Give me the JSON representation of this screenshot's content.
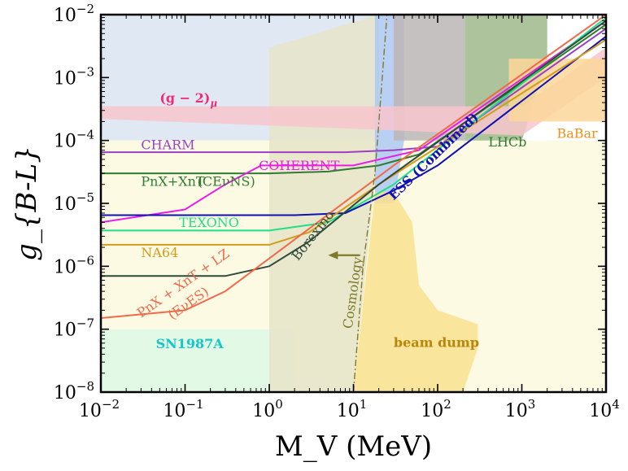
{
  "chart_data": {
    "type": "line",
    "title": "",
    "xlabel": "M_V (MeV)",
    "ylabel": "g_{B-L}",
    "xscale": "log",
    "yscale": "log",
    "xlim": [
      0.01,
      10000
    ],
    "ylim": [
      1e-08,
      0.01
    ],
    "x_ticks": [
      {
        "value": 0.01,
        "base": "10",
        "exp": "−2"
      },
      {
        "value": 0.1,
        "base": "10",
        "exp": "−1"
      },
      {
        "value": 1,
        "base": "10",
        "exp": "0"
      },
      {
        "value": 10,
        "base": "10",
        "exp": "1"
      },
      {
        "value": 100,
        "base": "10",
        "exp": "2"
      },
      {
        "value": 1000,
        "base": "10",
        "exp": "3"
      },
      {
        "value": 10000,
        "base": "10",
        "exp": "4"
      }
    ],
    "y_ticks": [
      {
        "value": 1e-08,
        "base": "10",
        "exp": "−8"
      },
      {
        "value": 1e-07,
        "base": "10",
        "exp": "−7"
      },
      {
        "value": 1e-06,
        "base": "10",
        "exp": "−6"
      },
      {
        "value": 1e-05,
        "base": "10",
        "exp": "−5"
      },
      {
        "value": 0.0001,
        "base": "10",
        "exp": "−4"
      },
      {
        "value": 0.001,
        "base": "10",
        "exp": "−3"
      },
      {
        "value": 0.01,
        "base": "10",
        "exp": "−2"
      }
    ],
    "regions": [
      {
        "name": "blue-background",
        "color": "#dbe5f1",
        "points": [
          [
            0.01,
            0.0001
          ],
          [
            20,
            0.0001
          ],
          [
            20,
            0.01
          ],
          [
            0.01,
            0.01
          ]
        ]
      },
      {
        "name": "yellow-background",
        "color": "#fdf9df",
        "points": [
          [
            0.01,
            1e-08
          ],
          [
            10000,
            1e-08
          ],
          [
            10000,
            0.0001
          ],
          [
            0.01,
            0.0001
          ]
        ]
      },
      {
        "name": "sn1987a",
        "label": "SN1987A",
        "color": "#ddf8e6",
        "points": [
          [
            0.01,
            1e-08
          ],
          [
            2,
            1e-08
          ],
          [
            2,
            1e-07
          ],
          [
            0.01,
            1e-07
          ]
        ]
      },
      {
        "name": "cosmology-region",
        "color": "#e6e4c8",
        "points": [
          [
            1,
            1e-08
          ],
          [
            10,
            1e-08
          ],
          [
            20,
            0.0001
          ],
          [
            20,
            0.01
          ],
          [
            1,
            0.003
          ]
        ]
      },
      {
        "name": "accel-blue",
        "color": "#adc8f2",
        "points": [
          [
            18,
            1e-05
          ],
          [
            30,
            1e-05
          ],
          [
            40,
            0.0001
          ],
          [
            40,
            0.01
          ],
          [
            18,
            0.01
          ]
        ]
      },
      {
        "name": "collider-grey",
        "color": "#bcb6b6",
        "points": [
          [
            30,
            0.0001
          ],
          [
            210,
            0.0001
          ],
          [
            210,
            0.01
          ],
          [
            30,
            0.01
          ]
        ]
      },
      {
        "name": "lhcb-green",
        "color": "#9fb98b",
        "points": [
          [
            210,
            0.0001
          ],
          [
            1000,
            0.0001
          ],
          [
            2000,
            0.002
          ],
          [
            2000,
            0.01
          ],
          [
            210,
            0.01
          ]
        ]
      },
      {
        "name": "beam-dump",
        "label": "beam dump",
        "color": "#f8e08e",
        "points": [
          [
            10,
            1e-08
          ],
          [
            200,
            1e-08
          ],
          [
            300,
            5e-08
          ],
          [
            300,
            1.2e-07
          ],
          [
            100,
            2e-07
          ],
          [
            60,
            5e-07
          ],
          [
            50,
            5e-06
          ],
          [
            30,
            1.5e-05
          ],
          [
            18,
            1.5e-05
          ],
          [
            10,
            1e-08
          ]
        ]
      },
      {
        "name": "g-2-band",
        "label": "(g − 2)_μ",
        "color": "#f7c6cc",
        "points": [
          [
            0.01,
            0.00035
          ],
          [
            1000,
            0.00035
          ],
          [
            10000,
            0.003
          ],
          [
            10000,
            0.001
          ],
          [
            1000,
            0.00012
          ],
          [
            0.01,
            0.00022
          ]
        ]
      },
      {
        "name": "babar-fill",
        "label": "BaBar",
        "color": "#fbd79a",
        "points": [
          [
            700,
            0.0002
          ],
          [
            10000,
            0.0002
          ],
          [
            10000,
            0.002
          ],
          [
            700,
            0.002
          ]
        ]
      }
    ],
    "series": [
      {
        "name": "CHARM",
        "color": "#9b3fc4",
        "points": [
          [
            0.01,
            6.5e-05
          ],
          [
            8,
            6.5e-05
          ],
          [
            30,
            7e-05
          ],
          [
            100,
            8e-05
          ],
          [
            10000,
            0.006
          ]
        ]
      },
      {
        "name": "PnX+XnT (CEνNS)",
        "color": "#2e7d32",
        "points": [
          [
            0.01,
            3e-05
          ],
          [
            1,
            3e-05
          ],
          [
            5,
            3.2e-05
          ],
          [
            20,
            4e-05
          ],
          [
            60,
            6e-05
          ],
          [
            10000,
            0.007
          ]
        ]
      },
      {
        "name": "COHERENT",
        "color": "#e91ee6",
        "points": [
          [
            0.01,
            5e-06
          ],
          [
            0.1,
            8e-06
          ],
          [
            0.3,
            2e-05
          ],
          [
            0.8,
            4e-05
          ],
          [
            10,
            4e-05
          ],
          [
            60,
            7e-05
          ],
          [
            10000,
            0.008
          ]
        ]
      },
      {
        "name": "TEXONO",
        "color": "#1de088",
        "points": [
          [
            0.01,
            3.7e-06
          ],
          [
            1,
            3.7e-06
          ],
          [
            5,
            5e-06
          ],
          [
            30,
            2e-05
          ],
          [
            10000,
            0.009
          ]
        ]
      },
      {
        "name": "ESS (Combined)",
        "color": "#1010b5",
        "points": [
          [
            0.01,
            6.5e-06
          ],
          [
            2,
            6.5e-06
          ],
          [
            8,
            7e-06
          ],
          [
            30,
            1.6e-05
          ],
          [
            100,
            4e-05
          ],
          [
            10000,
            0.0045
          ]
        ]
      },
      {
        "name": "NA64",
        "color": "#d49a1a",
        "points": [
          [
            0.01,
            2.2e-06
          ],
          [
            1,
            2.2e-06
          ],
          [
            3,
            3.5e-06
          ],
          [
            20,
            2e-05
          ],
          [
            10000,
            0.004
          ]
        ]
      },
      {
        "name": "Borexino",
        "color": "#2f4a3c",
        "points": [
          [
            0.01,
            7e-07
          ],
          [
            0.3,
            7e-07
          ],
          [
            1,
            1e-06
          ],
          [
            3,
            2.5e-06
          ],
          [
            20,
            2e-05
          ],
          [
            10000,
            0.008
          ]
        ]
      },
      {
        "name": "PnX + XnT + LZ (EνES)",
        "color": "#f06a4a",
        "points": [
          [
            0.01,
            1.5e-07
          ],
          [
            0.1,
            2e-07
          ],
          [
            0.3,
            4e-07
          ],
          [
            3,
            4e-06
          ],
          [
            30,
            4e-05
          ],
          [
            10000,
            0.01
          ]
        ]
      },
      {
        "name": "Cosmology",
        "color": "#7d7a2b",
        "dash": "8 3 2 3",
        "points": [
          [
            10,
            1e-08
          ],
          [
            13,
            1e-06
          ],
          [
            18,
            3e-05
          ],
          [
            22,
            0.001
          ],
          [
            25,
            0.01
          ]
        ]
      }
    ],
    "annotations": [
      {
        "name": "label-g-2",
        "text": "(g − 2)",
        "sub": "μ",
        "color": "#ee2a7b",
        "x": 0.05,
        "y": 0.0004,
        "rotate": 0,
        "weight": "bold"
      },
      {
        "name": "label-charm",
        "text": "CHARM",
        "color": "#9b3fc4",
        "x": 0.03,
        "y": 7.2e-05,
        "rotate": 0
      },
      {
        "name": "label-pnx-xnt",
        "text": "PnX+XnT",
        "color": "#2e7d32",
        "x": 0.03,
        "y": 1.9e-05,
        "rotate": 0
      },
      {
        "name": "label-cevns",
        "text": "(CEνNS)",
        "color": "#2e7d32",
        "x": 0.14,
        "y": 1.9e-05,
        "rotate": 0
      },
      {
        "name": "label-coherent",
        "text": "COHERENT",
        "color": "#e91ee6",
        "x": 0.75,
        "y": 3.4e-05,
        "rotate": 0
      },
      {
        "name": "label-texono",
        "text": "TEXONO",
        "color": "#1de088",
        "x": 0.085,
        "y": 4.2e-06,
        "rotate": 0
      },
      {
        "name": "label-na64",
        "text": "NA64",
        "color": "#d49a1a",
        "x": 0.03,
        "y": 1.4e-06,
        "rotate": 0
      },
      {
        "name": "label-borexino",
        "text": "Borexino",
        "color": "#2f4a3c",
        "x": 2.2,
        "y": 1.2e-06,
        "rotate": -52
      },
      {
        "name": "label-pnx-lz",
        "text": "PnX + XnT + LZ",
        "color": "#f06a4a",
        "x": 0.03,
        "y": 1.5e-07,
        "rotate": -35
      },
      {
        "name": "label-eves",
        "text": "(EνES)",
        "color": "#f06a4a",
        "x": 0.07,
        "y": 1.4e-07,
        "rotate": -35
      },
      {
        "name": "label-cosmology",
        "text": "Cosmology",
        "color": "#7d7a2b",
        "x": 9.6,
        "y": 1e-07,
        "rotate": -82
      },
      {
        "name": "label-ess",
        "text": "ESS (Combined)",
        "color": "#1010b5",
        "x": 30,
        "y": 1.1e-05,
        "rotate": -44,
        "weight": "bold",
        "size": 20
      },
      {
        "name": "label-lhcb",
        "text": "LHCb",
        "color": "#2e7d32",
        "x": 400,
        "y": 8e-05,
        "rotate": 0
      },
      {
        "name": "label-babar",
        "text": "BaBar",
        "color": "#f0901a",
        "x": 2600,
        "y": 0.00011,
        "rotate": 0
      },
      {
        "name": "label-sn1987a",
        "text": "SN1987A",
        "color": "#14c7c9",
        "x": 0.045,
        "y": 5e-08,
        "rotate": 0,
        "weight": "bold"
      },
      {
        "name": "label-beam-dump",
        "text": "beam dump",
        "color": "#b8860b",
        "x": 30,
        "y": 5.2e-08,
        "rotate": 0,
        "weight": "bold"
      }
    ],
    "arrow": {
      "name": "cosmology-arrow",
      "color": "#7d7a2b",
      "from": [
        12,
        1.5e-06
      ],
      "to": [
        5,
        1.5e-06
      ]
    }
  }
}
